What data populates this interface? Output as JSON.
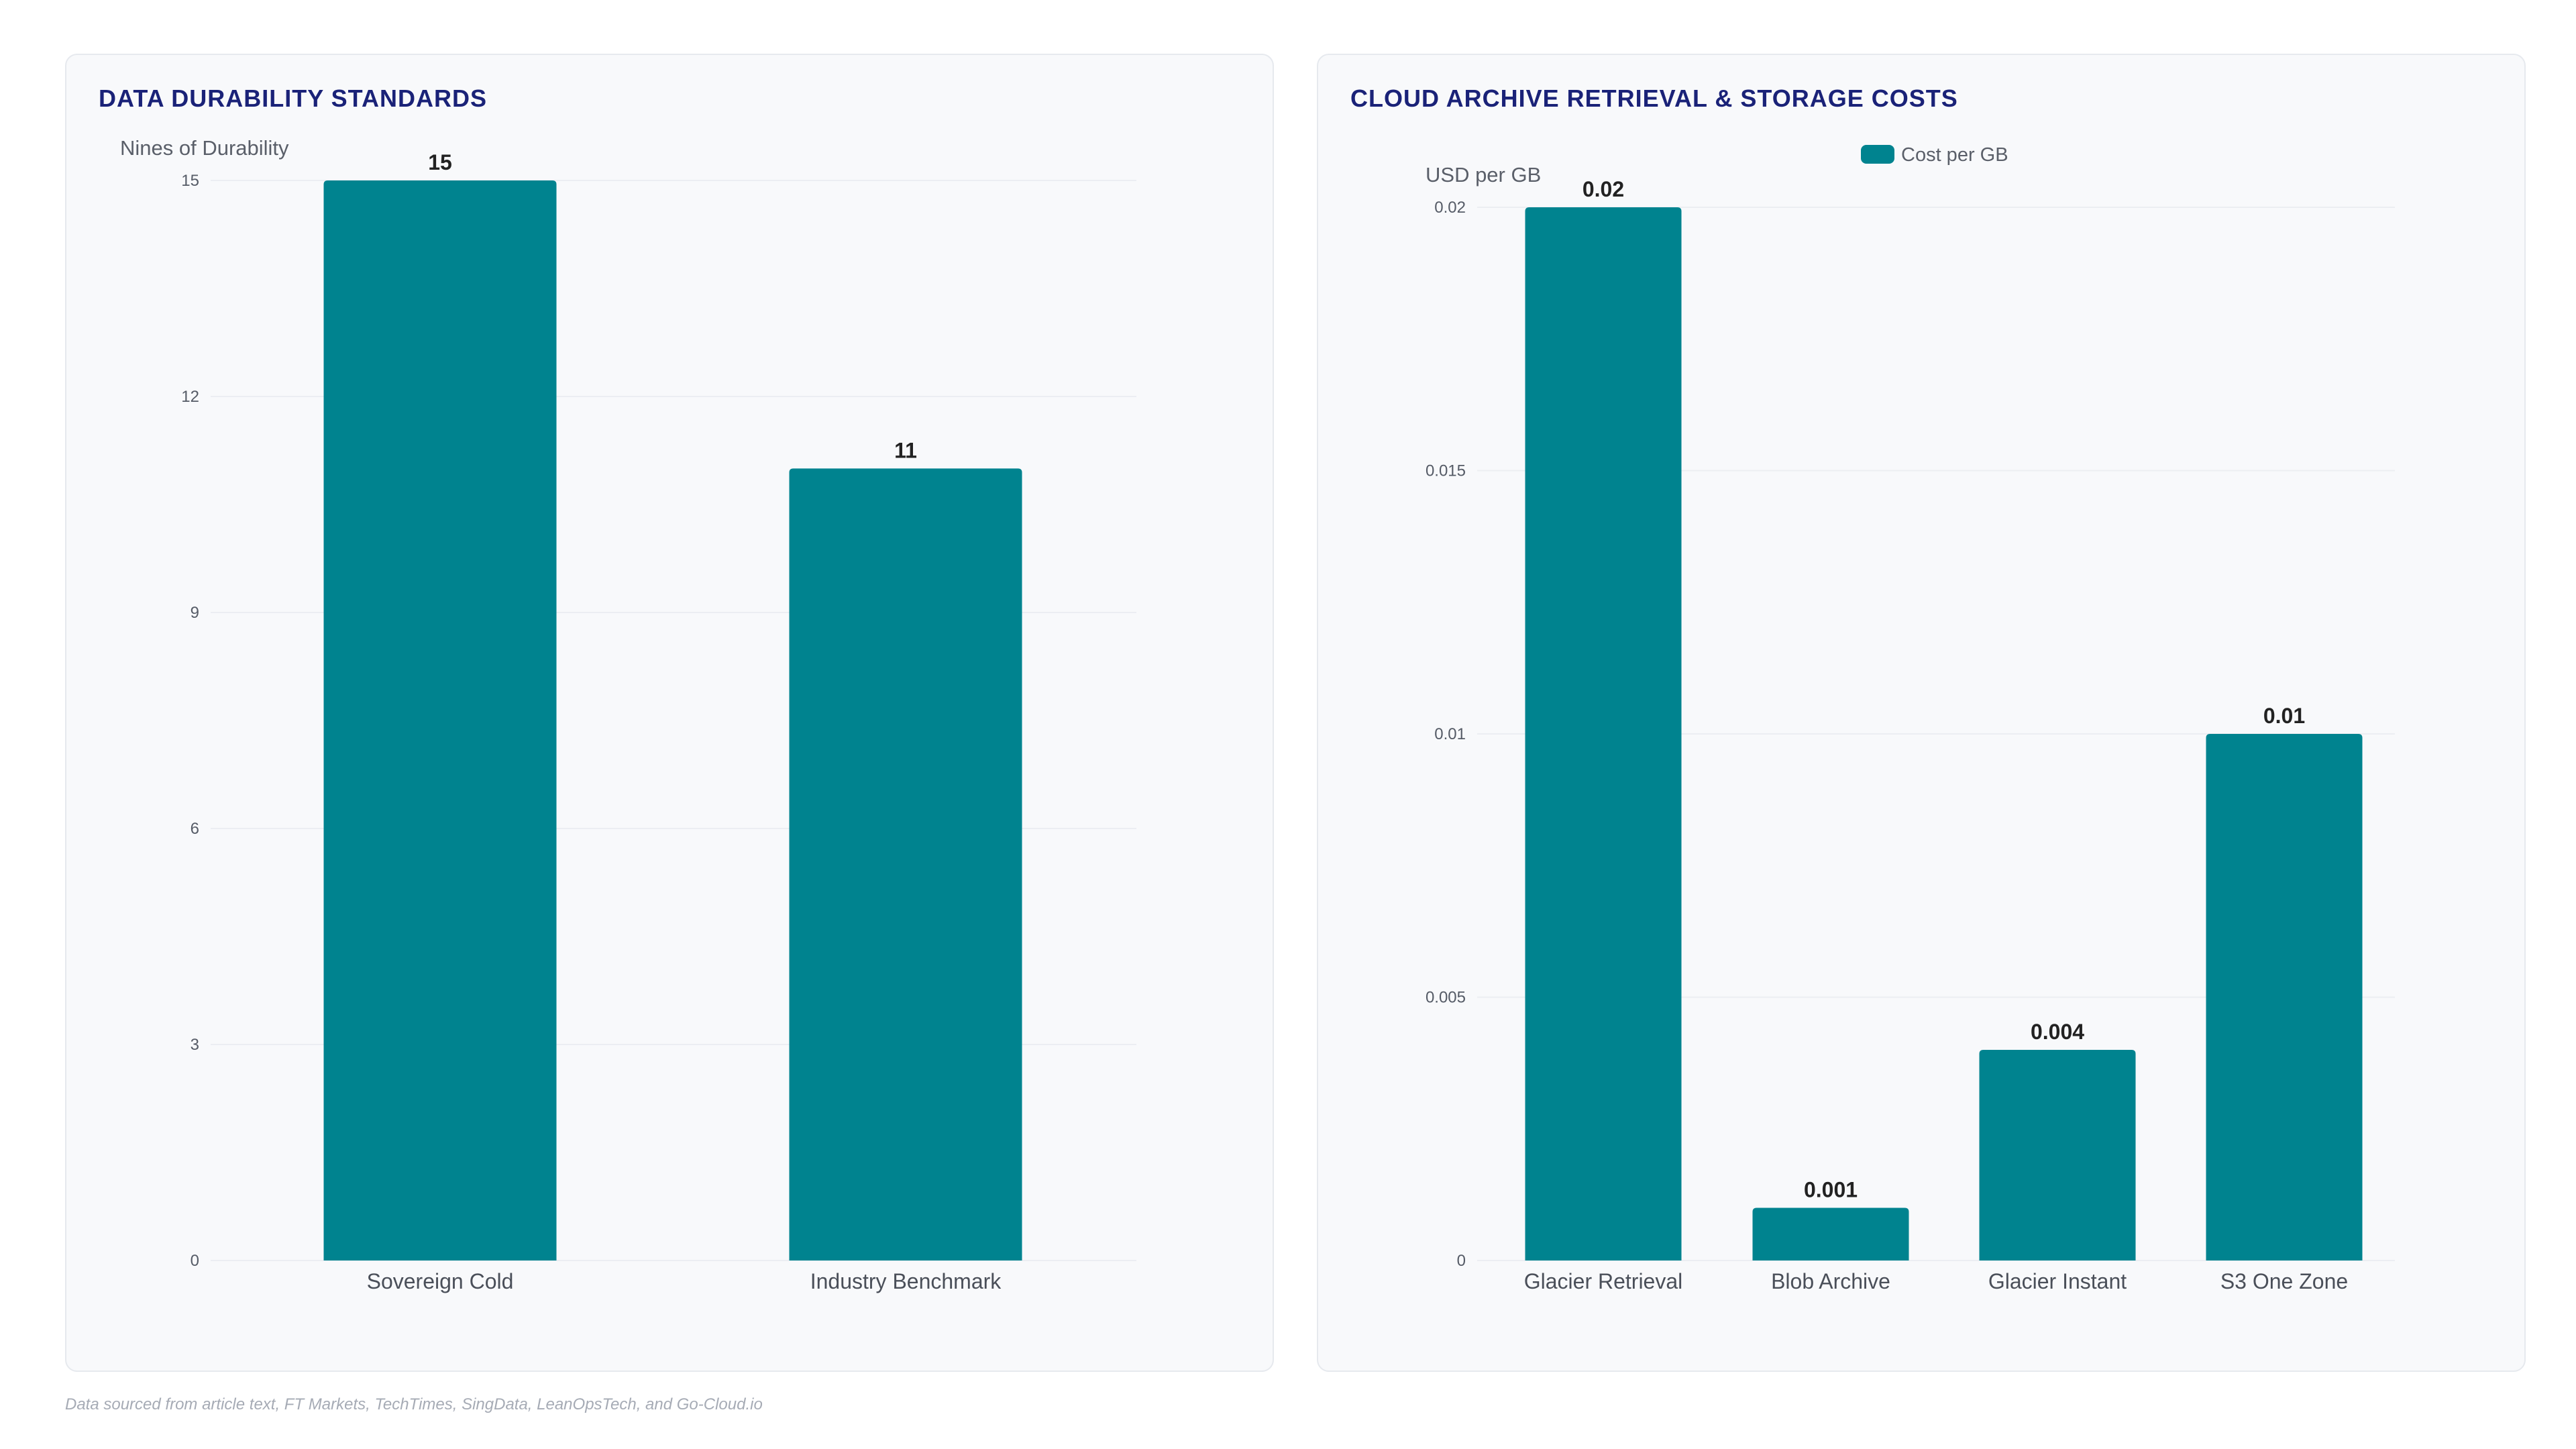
{
  "colors": {
    "bar": "#00838f",
    "title": "#1a2278",
    "grid": "#eceef2",
    "tick_text": "#555b66",
    "value_text": "#222222",
    "panel_bg": "#f8f9fb"
  },
  "chart_data": [
    {
      "type": "bar",
      "title": "DATA DURABILITY STANDARDS",
      "ylabel": "Nines of Durability",
      "xlabel": "",
      "categories": [
        "Sovereign Cold",
        "Industry Benchmark"
      ],
      "values": [
        15,
        11
      ],
      "value_labels": [
        "15",
        "11"
      ],
      "ylim": [
        0,
        15
      ],
      "yticks": [
        0,
        3,
        6,
        9,
        12,
        15
      ],
      "ytick_labels": [
        "0",
        "3",
        "6",
        "9",
        "12",
        "15"
      ],
      "grid": true,
      "legend": null
    },
    {
      "type": "bar",
      "title": "CLOUD ARCHIVE RETRIEVAL & STORAGE COSTS",
      "ylabel": "USD per GB",
      "xlabel": "",
      "categories": [
        "Glacier Retrieval",
        "Blob Archive",
        "Glacier Instant",
        "S3 One Zone"
      ],
      "series": [
        {
          "name": "Cost per GB",
          "values": [
            0.02,
            0.001,
            0.004,
            0.01
          ]
        }
      ],
      "value_labels": [
        "0.02",
        "0.001",
        "0.004",
        "0.01"
      ],
      "ylim": [
        0,
        0.02
      ],
      "yticks": [
        0,
        0.005,
        0.01,
        0.015,
        0.02
      ],
      "ytick_labels": [
        "0",
        "0.005",
        "0.01",
        "0.015",
        "0.02"
      ],
      "grid": true,
      "legend": {
        "position": "top-center",
        "entries": [
          "Cost per GB"
        ]
      }
    }
  ],
  "footer": {
    "note": "Data sourced from article text, FT Markets, TechTimes, SingData, LeanOpsTech, and Go-Cloud.io"
  }
}
